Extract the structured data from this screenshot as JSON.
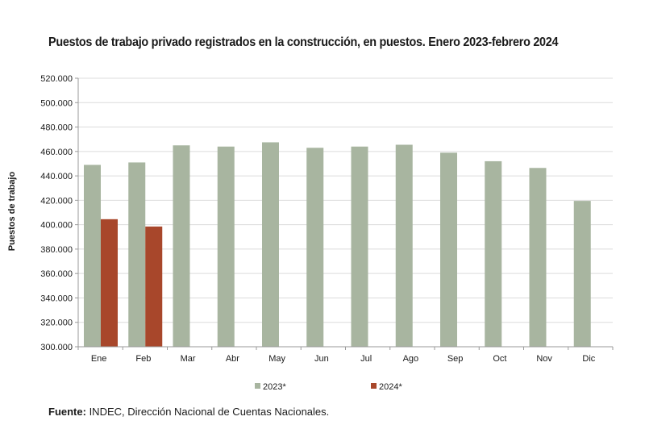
{
  "chart_data": {
    "type": "bar",
    "title": "Puestos de trabajo privado registrados en la construcción, en puestos. Enero 2023-febrero 2024",
    "ylabel": "Puestos de trabajo",
    "xlabel": "",
    "ylim": [
      300000,
      520000
    ],
    "ytick_values": [
      300000,
      320000,
      340000,
      360000,
      380000,
      400000,
      420000,
      440000,
      460000,
      480000,
      500000,
      520000
    ],
    "ytick_labels": [
      "300.000",
      "320.000",
      "340.000",
      "360.000",
      "380.000",
      "400.000",
      "420.000",
      "440.000",
      "460.000",
      "480.000",
      "500.000",
      "520.000"
    ],
    "categories": [
      "Ene",
      "Feb",
      "Mar",
      "Abr",
      "May",
      "Jun",
      "Jul",
      "Ago",
      "Sep",
      "Oct",
      "Nov",
      "Dic"
    ],
    "series": [
      {
        "name": "2023*",
        "color": "#a8b5a0",
        "values": [
          449000,
          451000,
          465000,
          464000,
          467500,
          463000,
          464000,
          465500,
          459000,
          452000,
          446500,
          419500
        ]
      },
      {
        "name": "2024*",
        "color": "#a8472b",
        "values": [
          404500,
          398500,
          null,
          null,
          null,
          null,
          null,
          null,
          null,
          null,
          null,
          null
        ]
      }
    ],
    "grid": true,
    "legend_position": "bottom"
  },
  "source": {
    "label": "Fuente:",
    "text": " INDEC, Dirección Nacional de Cuentas Nacionales."
  }
}
